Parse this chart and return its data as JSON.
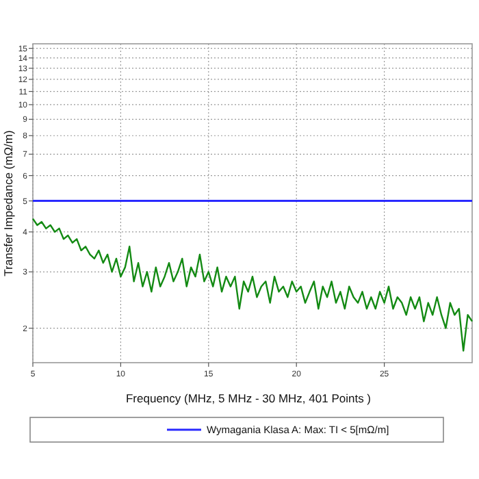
{
  "chart_data": {
    "type": "line",
    "xlabel": "Frequency (MHz, 5 MHz - 30 MHz, 401 Points )",
    "ylabel": "Transfer Impedance (mΩ/m)",
    "log": "y",
    "grid": true,
    "legend": "bottom",
    "xlim": [
      5,
      30
    ],
    "ylim": [
      1.56,
      15.5
    ],
    "xticks": [
      5,
      10,
      15,
      20,
      25
    ],
    "yticks": [
      2,
      3,
      4,
      5,
      6,
      7,
      8,
      9,
      10,
      11,
      12,
      13,
      14,
      15
    ],
    "ref_lines": [
      {
        "axis": "y",
        "value": 5,
        "label": "Wymagania Klasa A: Max: TI < 5[mΩ/m]",
        "color": "#2a2aff"
      }
    ],
    "x": [
      5,
      5.25,
      5.5,
      5.75,
      6,
      6.25,
      6.5,
      6.75,
      7,
      7.25,
      7.5,
      7.75,
      8,
      8.25,
      8.5,
      8.75,
      9,
      9.25,
      9.5,
      9.75,
      10,
      10.25,
      10.5,
      10.75,
      11,
      11.25,
      11.5,
      11.75,
      12,
      12.25,
      12.5,
      12.75,
      13,
      13.25,
      13.5,
      13.75,
      14,
      14.25,
      14.5,
      14.75,
      15,
      15.25,
      15.5,
      15.75,
      16,
      16.25,
      16.5,
      16.75,
      17,
      17.25,
      17.5,
      17.75,
      18,
      18.25,
      18.5,
      18.75,
      19,
      19.25,
      19.5,
      19.75,
      20,
      20.25,
      20.5,
      20.75,
      21,
      21.25,
      21.5,
      21.75,
      22,
      22.25,
      22.5,
      22.75,
      23,
      23.25,
      23.5,
      23.75,
      24,
      24.25,
      24.5,
      24.75,
      25,
      25.25,
      25.5,
      25.75,
      26,
      26.25,
      26.5,
      26.75,
      27,
      27.25,
      27.5,
      27.75,
      28,
      28.25,
      28.5,
      28.75,
      29,
      29.25,
      29.5,
      29.75,
      30
    ],
    "series": [
      {
        "color": "#138a13",
        "values": [
          4.4,
          4.2,
          4.3,
          4.1,
          4.2,
          4.0,
          4.1,
          3.8,
          3.9,
          3.7,
          3.8,
          3.5,
          3.6,
          3.4,
          3.3,
          3.5,
          3.2,
          3.4,
          3.0,
          3.3,
          2.9,
          3.1,
          3.6,
          2.8,
          3.2,
          2.7,
          3.0,
          2.6,
          3.1,
          2.7,
          2.9,
          3.2,
          2.8,
          3.0,
          3.3,
          2.7,
          3.1,
          2.9,
          3.4,
          2.8,
          3.0,
          2.7,
          3.1,
          2.6,
          2.9,
          2.7,
          2.9,
          2.3,
          2.8,
          2.6,
          2.9,
          2.5,
          2.7,
          2.8,
          2.4,
          2.9,
          2.6,
          2.7,
          2.5,
          2.8,
          2.6,
          2.7,
          2.4,
          2.6,
          2.8,
          2.3,
          2.7,
          2.5,
          2.8,
          2.4,
          2.6,
          2.3,
          2.7,
          2.5,
          2.4,
          2.6,
          2.3,
          2.5,
          2.3,
          2.6,
          2.4,
          2.7,
          2.3,
          2.5,
          2.4,
          2.2,
          2.5,
          2.3,
          2.5,
          2.1,
          2.4,
          2.2,
          2.5,
          2.2,
          2.0,
          2.4,
          2.2,
          2.3,
          1.7,
          2.2,
          2.1
        ]
      }
    ]
  }
}
